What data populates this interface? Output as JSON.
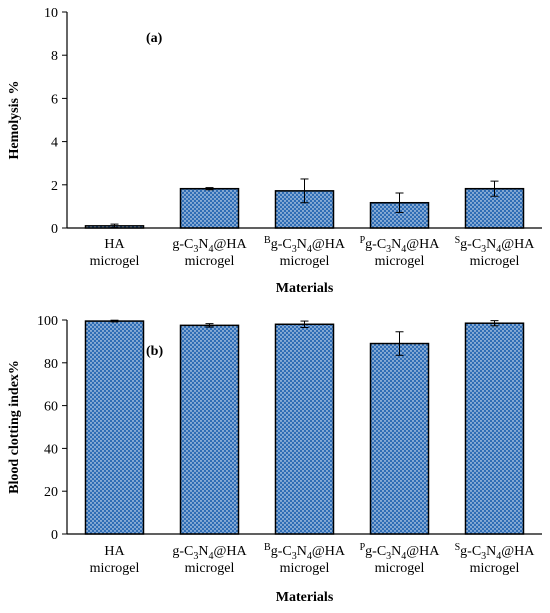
{
  "chart_data": [
    {
      "type": "bar",
      "panel_label": "(a)",
      "title": "",
      "xlabel": "Materials",
      "ylabel": "Hemolysis %",
      "ylim": [
        0,
        10
      ],
      "yticks": [
        0,
        2,
        4,
        6,
        8,
        10
      ],
      "grid": false,
      "categories": [
        {
          "pre": "",
          "main": "HA",
          "sub1": "",
          "mid": "",
          "sub2": "",
          "post": "",
          "line2": "microgel"
        },
        {
          "pre": "",
          "main": "g-C",
          "sub1": "3",
          "mid": "N",
          "sub2": "4",
          "post": "@HA",
          "line2": "microgel"
        },
        {
          "pre": "B",
          "main": "g-C",
          "sub1": "3",
          "mid": "N",
          "sub2": "4",
          "post": "@HA",
          "line2": "microgel"
        },
        {
          "pre": "P",
          "main": "g-C",
          "sub1": "3",
          "mid": "N",
          "sub2": "4",
          "post": "@HA",
          "line2": "microgel"
        },
        {
          "pre": "S",
          "main": "g-C",
          "sub1": "3",
          "mid": "N",
          "sub2": "4",
          "post": "@HA",
          "line2": "microgel"
        }
      ],
      "values": [
        0.1,
        1.82,
        1.72,
        1.17,
        1.82
      ],
      "errors": [
        0.08,
        0.05,
        0.55,
        0.45,
        0.35
      ],
      "bar_color": "#2f6db5"
    },
    {
      "type": "bar",
      "panel_label": "(b)",
      "title": "",
      "xlabel": "Materials",
      "ylabel": "Blood clotting index%",
      "ylim": [
        0,
        100
      ],
      "yticks": [
        0,
        20,
        40,
        60,
        80,
        100
      ],
      "grid": false,
      "categories": [
        {
          "pre": "",
          "main": "HA",
          "sub1": "",
          "mid": "",
          "sub2": "",
          "post": "",
          "line2": "microgel"
        },
        {
          "pre": "",
          "main": "g-C",
          "sub1": "3",
          "mid": "N",
          "sub2": "4",
          "post": "@HA",
          "line2": "microgel"
        },
        {
          "pre": "B",
          "main": "g-C",
          "sub1": "3",
          "mid": "N",
          "sub2": "4",
          "post": "@HA",
          "line2": "microgel"
        },
        {
          "pre": "P",
          "main": "g-C",
          "sub1": "3",
          "mid": "N",
          "sub2": "4",
          "post": "@HA",
          "line2": "microgel"
        },
        {
          "pre": "S",
          "main": "g-C",
          "sub1": "3",
          "mid": "N",
          "sub2": "4",
          "post": "@HA",
          "line2": "microgel"
        }
      ],
      "values": [
        99.5,
        97.5,
        98,
        89,
        98.5
      ],
      "errors": [
        0.4,
        0.8,
        1.5,
        5.5,
        1.2
      ],
      "bar_color": "#2f6db5"
    }
  ]
}
